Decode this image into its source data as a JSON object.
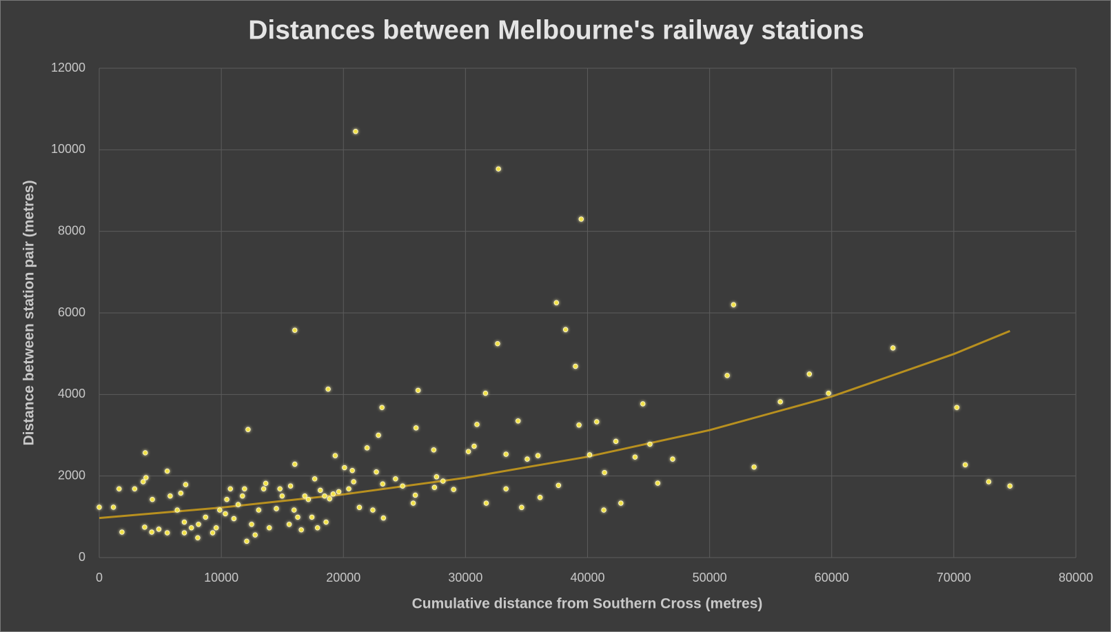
{
  "chart_data": {
    "type": "scatter",
    "title": "Distances between Melbourne's railway stations",
    "x_label": "Cumulative distance from Southern Cross (metres)",
    "y_label": "Distance between station pair (metres)",
    "xlim": [
      0,
      80000
    ],
    "xticks": [
      0,
      10000,
      20000,
      30000,
      40000,
      50000,
      60000,
      70000,
      80000
    ],
    "ylim": [
      0,
      12000
    ],
    "yticks": [
      0,
      2000,
      4000,
      6000,
      8000,
      10000,
      12000
    ],
    "grid": true,
    "series": [
      {
        "color": "#f2e24a",
        "x": [
          21000,
          32700,
          39480,
          16020,
          37450,
          51960,
          38200,
          32630,
          65020,
          39010,
          51440,
          58170,
          59740,
          55790,
          44530,
          70250,
          18750,
          26120,
          31640,
          23160,
          34310,
          39300,
          40750,
          30940,
          25950,
          12190,
          22870,
          42320,
          45110,
          21940,
          30710,
          30240,
          27400,
          33320,
          40170,
          43890,
          35940,
          35060,
          46970,
          19330,
          3770,
          16020,
          70940,
          53640,
          20090,
          20730,
          22700,
          5570,
          41390,
          27630,
          28160,
          45750,
          72860,
          74600,
          37620,
          27460,
          33320,
          29030,
          24850,
          23220,
          24270,
          36110,
          31700,
          42730,
          25890,
          25720,
          21310,
          34600,
          41330,
          23280,
          18580,
          22410,
          1860,
          12080,
          8070,
          0,
          1625,
          1160,
          2900,
          3600,
          3830,
          4350,
          3720,
          4300,
          4880,
          5570,
          6970,
          7080,
          6680,
          5810,
          6390,
          7550,
          8710,
          9580,
          9870,
          10450,
          11030,
          11900,
          12480,
          13060,
          13470,
          13930,
          14510,
          14980,
          15560,
          15960,
          16550,
          16840,
          17420,
          17650,
          18110,
          18460,
          18870,
          19160,
          6970,
          8130,
          9290,
          10330,
          11380,
          12770,
          14800,
          15670,
          16260,
          17880,
          17130,
          19620,
          20440,
          20840,
          13640,
          11730,
          10740
        ],
        "values": [
          10450,
          9530,
          8300,
          5575,
          6250,
          6200,
          5590,
          5245,
          5140,
          4690,
          4465,
          4500,
          4030,
          3820,
          3770,
          3680,
          4130,
          4100,
          4030,
          3680,
          3350,
          3250,
          3330,
          3265,
          3180,
          3140,
          3000,
          2850,
          2780,
          2690,
          2730,
          2600,
          2640,
          2535,
          2520,
          2465,
          2500,
          2415,
          2415,
          2500,
          2570,
          2290,
          2275,
          2220,
          2205,
          2135,
          2100,
          2120,
          2085,
          1980,
          1875,
          1825,
          1860,
          1755,
          1770,
          1720,
          1685,
          1670,
          1755,
          1805,
          1930,
          1475,
          1335,
          1335,
          1530,
          1335,
          1230,
          1230,
          1165,
          970,
          870,
          1165,
          625,
          400,
          485,
          1235,
          1685,
          1235,
          1685,
          1860,
          1960,
          1425,
          745,
          625,
          695,
          608,
          870,
          1790,
          1580,
          1510,
          1165,
          730,
          990,
          730,
          1165,
          1425,
          955,
          1685,
          815,
          1165,
          1685,
          730,
          1200,
          1510,
          815,
          1165,
          680,
          1510,
          990,
          1930,
          1650,
          1510,
          1440,
          1560,
          608,
          815,
          608,
          1075,
          1300,
          555,
          1685,
          1755,
          990,
          730,
          1425,
          1615,
          1685,
          1860,
          1820,
          1510,
          1685
        ]
      }
    ],
    "trendline": {
      "color": "#b8901f",
      "x": [
        0,
        10000,
        20000,
        30000,
        40000,
        50000,
        60000,
        70000,
        74600
      ],
      "values": [
        970,
        1226,
        1549,
        1957,
        2473,
        3125,
        3949,
        4991,
        5557
      ]
    }
  }
}
